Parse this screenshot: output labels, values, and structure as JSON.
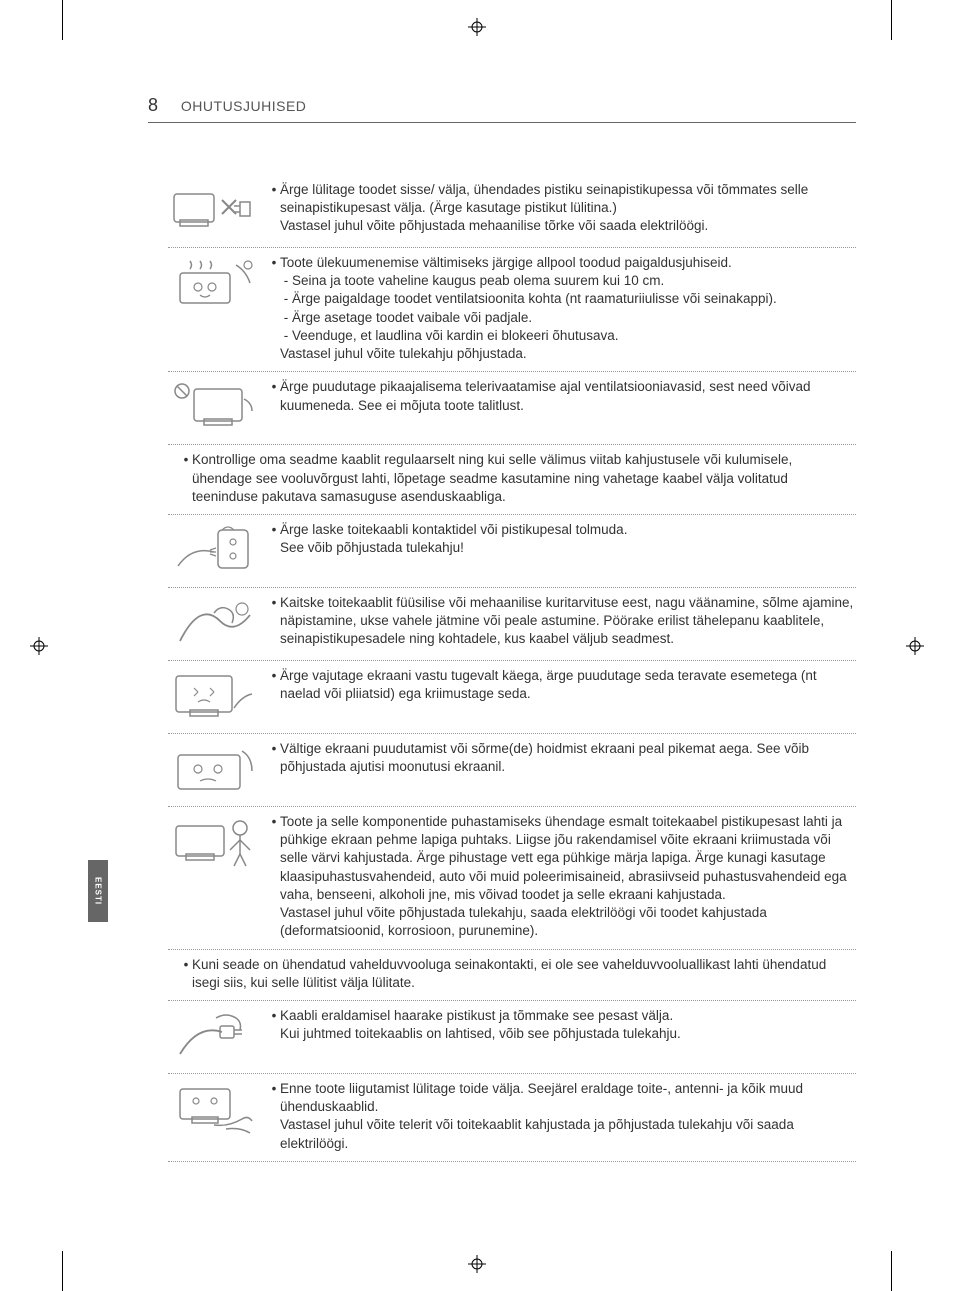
{
  "page_number": "8",
  "section_title": "OHUTUSJUHISED",
  "side_tab": "EESTI",
  "colors": {
    "text": "#333333",
    "header_text": "#555555",
    "border": "#666666",
    "dotted_border": "#999999",
    "tab_bg": "#666666",
    "tab_text": "#ffffff",
    "background": "#ffffff",
    "icon_stroke": "#888888"
  },
  "typography": {
    "body_fontsize": 13.5,
    "header_fontsize": 14,
    "pagenum_fontsize": 18,
    "line_height": 1.35
  },
  "items": [
    {
      "icon": "plug-x",
      "bullets": [
        {
          "text": "Ärge lülitage toodet sisse/ välja, ühendades pistiku seinapistikupessa või tõmmates selle seinapistikupesast välja. (Ärge kasutage pistikut lülitina.)",
          "after": "Vastasel juhul võite põhjustada mehaanilise tõrke või saada elektrilöögi."
        }
      ]
    },
    {
      "icon": "tv-heat",
      "bullets": [
        {
          "text": "Toote ülekuumenemise vältimiseks järgige allpool toodud paigaldusjuhiseid.",
          "subs": [
            "Seina ja toote vaheline kaugus peab olema suurem kui 10 cm.",
            "Ärge paigaldage toodet ventilatsioonita kohta (nt raamaturiiulisse või seinakappi).",
            "Ärge asetage toodet vaibale või padjale.",
            "Veenduge, et laudlina või kardin ei blokeeri õhutusava."
          ],
          "after": "Vastasel juhul võite tulekahju põhjustada."
        }
      ]
    },
    {
      "icon": "tv-vent-hand",
      "bullets": [
        {
          "text": "Ärge puudutage pikaajalisema telerivaatamise ajal ventilatsiooniavasid, sest need võivad kuumeneda. See ei mõjuta toote talitlust."
        }
      ]
    },
    {
      "no_icon": true,
      "bullets": [
        {
          "text": "Kontrollige oma seadme kaablit regulaarselt ning kui selle välimus viitab kahjustusele või kulumisele, ühendage see vooluvõrgust lahti, lõpetage seadme kasutamine ning vahetage kaabel välja volitatud teeninduse pakutava samasuguse asenduskaabliga."
        }
      ]
    },
    {
      "icon": "plug-dust",
      "bullets": [
        {
          "text": "Ärge laske toitekaabli kontaktidel või pistikupesal tolmuda.",
          "after": "See võib põhjustada tulekahju!"
        }
      ]
    },
    {
      "icon": "cable-bend",
      "bullets": [
        {
          "text": "Kaitske toitekaablit füüsilise või mehaanilise kuritarvituse eest, nagu väänamine, sõlme ajamine, näpistamine, ukse vahele jätmine või peale astumine. Pöörake erilist tähelepanu kaablitele, seinapistikupesadele ning kohtadele, kus kaabel väljub seadmest."
        }
      ]
    },
    {
      "icon": "screen-press",
      "bullets": [
        {
          "text": "Ärge vajutage ekraani vastu tugevalt käega, ärge puudutage seda teravate esemetega (nt naelad või pliiatsid) ega kriimustage seda."
        }
      ]
    },
    {
      "icon": "screen-finger",
      "bullets": [
        {
          "text": "Vältige ekraani puudutamist või sõrme(de) hoidmist ekraani peal pikemat aega. See võib põhjustada ajutisi moonutusi ekraanil."
        }
      ]
    },
    {
      "icon": "tv-clean",
      "bullets": [
        {
          "text": "Toote ja selle komponentide puhastamiseks ühendage esmalt toitekaabel pistikupesast lahti ja pühkige ekraan pehme lapiga puhtaks. Liigse jõu rakendamisel võite ekraani kriimustada või selle värvi kahjustada. Ärge pihustage vett ega pühkige märja lapiga. Ärge kunagi kasutage klaasipuhastusvahendeid, auto või muid poleerimisaineid, abrasiivseid puhastusvahendeid ega vaha, benseeni, alkoholi jne, mis võivad toodet ja selle ekraani kahjustada.",
          "after": "Vastasel juhul võite põhjustada tulekahju, saada elektrilöögi või toodet kahjustada (deformatsioonid, korrosioon, purunemine)."
        }
      ]
    },
    {
      "no_icon": true,
      "bullets": [
        {
          "text": "Kuni seade on ühendatud vahelduvvooluga seinakontakti, ei ole see vahelduvvooluallikast lahti ühendatud isegi siis, kui selle lülitist välja lülitate."
        }
      ]
    },
    {
      "icon": "plug-pull",
      "bullets": [
        {
          "text": "Kaabli eraldamisel haarake pistikust ja tõmmake see pesast välja.",
          "after": "Kui juhtmed toitekaablis on lahtised, võib see põhjustada tulekahju."
        }
      ]
    },
    {
      "icon": "tv-cables",
      "bullets": [
        {
          "text": "Enne toote liigutamist lülitage toide välja. Seejärel eraldage toite-, antenni- ja kõik muud ühenduskaablid.",
          "after": "Vastasel juhul võite telerit või toitekaablit kahjustada ja põhjustada tulekahju või saada elektrilöögi."
        }
      ]
    }
  ]
}
